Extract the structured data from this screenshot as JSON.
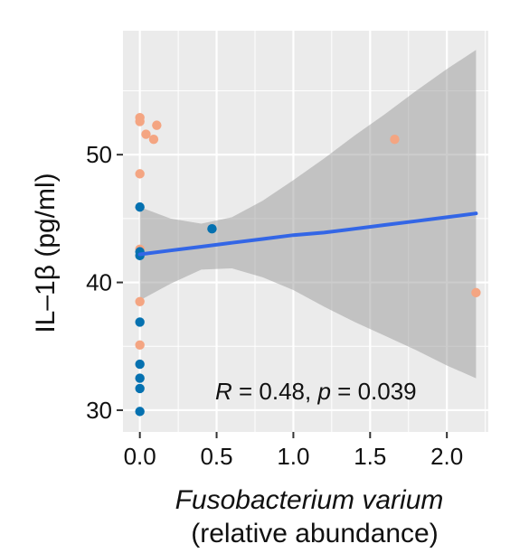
{
  "chart_data": {
    "type": "scatter",
    "title": "",
    "xlabel_line1": "Fusobacterium varium",
    "xlabel_line2": "(relative abundance)",
    "ylabel": "IL–1β (pg/ml)",
    "xlim": [
      -0.11,
      2.27
    ],
    "ylim": [
      28.3,
      59.7
    ],
    "x_ticks": [
      0.0,
      0.5,
      1.0,
      1.5,
      2.0
    ],
    "x_tick_labels": [
      "0.0",
      "0.5",
      "1.0",
      "1.5",
      "2.0"
    ],
    "y_ticks": [
      30,
      40,
      50
    ],
    "y_tick_labels": [
      "30",
      "40",
      "50"
    ],
    "grid": true,
    "legend": "none",
    "annotation": {
      "r_symbol": "R",
      "r_text": " = 0.48, ",
      "p_symbol": "p",
      "p_text": " = 0.039"
    },
    "series": [
      {
        "color": "#F4A582",
        "points": [
          {
            "x": 0.0,
            "y": 52.9
          },
          {
            "x": 0.0,
            "y": 52.6
          },
          {
            "x": 0.04,
            "y": 51.6
          },
          {
            "x": 0.09,
            "y": 51.2
          },
          {
            "x": 0.11,
            "y": 52.3
          },
          {
            "x": 0.0,
            "y": 48.5
          },
          {
            "x": 0.0,
            "y": 42.6
          },
          {
            "x": 0.0,
            "y": 38.5
          },
          {
            "x": 0.0,
            "y": 35.1
          },
          {
            "x": 1.66,
            "y": 51.2
          },
          {
            "x": 2.19,
            "y": 39.2
          }
        ]
      },
      {
        "color": "#0571B0",
        "points": [
          {
            "x": 0.0,
            "y": 45.9
          },
          {
            "x": 0.47,
            "y": 44.2
          },
          {
            "x": 0.0,
            "y": 42.4
          },
          {
            "x": 0.0,
            "y": 42.1
          },
          {
            "x": 0.0,
            "y": 36.9
          },
          {
            "x": 0.0,
            "y": 33.6
          },
          {
            "x": 0.0,
            "y": 32.5
          },
          {
            "x": 0.0,
            "y": 31.7
          },
          {
            "x": 0.0,
            "y": 29.9
          }
        ]
      }
    ],
    "fit": {
      "color": "#3366E6",
      "band_color": "#999999",
      "x": [
        0.0,
        0.2,
        0.4,
        0.6,
        0.8,
        1.0,
        1.2,
        1.4,
        1.6,
        1.8,
        2.0,
        2.19
      ],
      "y": [
        42.2,
        42.5,
        42.8,
        43.1,
        43.4,
        43.7,
        43.9,
        44.2,
        44.5,
        44.8,
        45.1,
        45.4
      ],
      "upper": [
        45.9,
        45.0,
        44.6,
        45.1,
        46.4,
        48.0,
        49.7,
        51.5,
        53.2,
        55.0,
        56.7,
        58.2
      ],
      "lower": [
        38.6,
        39.9,
        41.0,
        41.1,
        40.4,
        39.4,
        38.1,
        36.9,
        35.8,
        34.7,
        33.5,
        32.5
      ]
    }
  }
}
